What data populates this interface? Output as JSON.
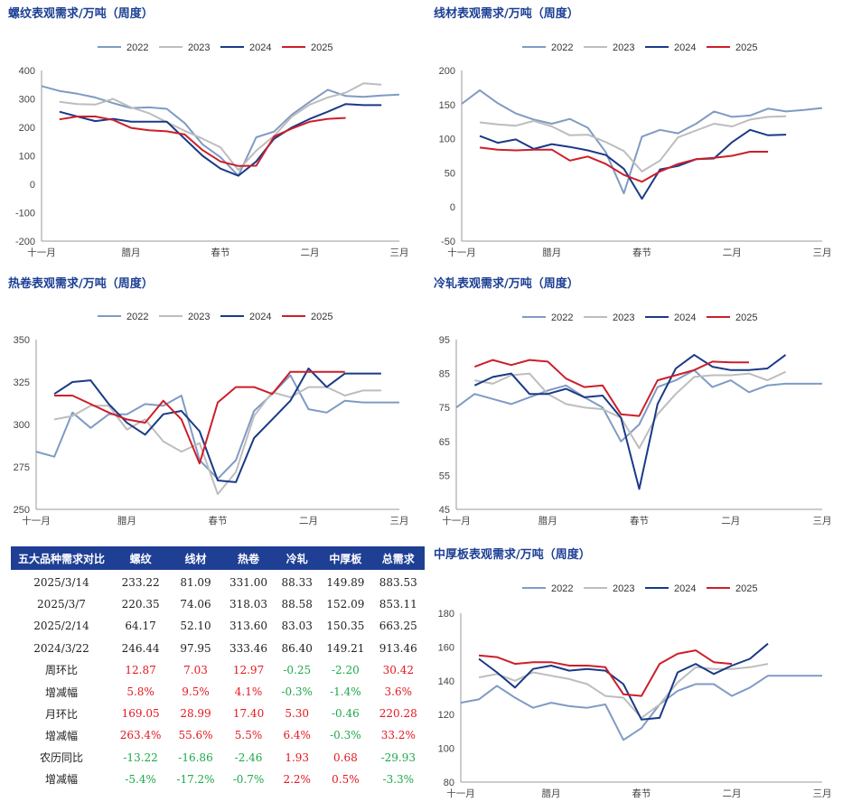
{
  "colors": {
    "2022": "#7f9bc4",
    "2023": "#bdbdbd",
    "2024": "#1a3a86",
    "2025": "#cc1f2a",
    "title": "#1c3f94",
    "header_bg": "#1f3f95",
    "positive": "#e3171f",
    "negative": "#1ea84a"
  },
  "chart_data": [
    {
      "id": "rebar",
      "type": "line",
      "title": "螺纹表观需求/万吨（周度）",
      "ylim": [
        -200,
        400
      ],
      "yticks": [
        -200,
        -100,
        0,
        100,
        200,
        300,
        400
      ],
      "xtick_labels": [
        "十一月",
        "腊月",
        "春节",
        "二月",
        "三月"
      ],
      "x_unit": "week index (0-20)",
      "series": [
        {
          "name": "2022",
          "x": [
            0,
            1,
            2,
            3,
            4,
            5,
            6,
            7,
            8,
            9,
            10,
            11,
            12,
            13,
            14,
            15,
            16,
            17,
            18,
            19,
            20
          ],
          "values": [
            345,
            328,
            318,
            305,
            285,
            268,
            270,
            265,
            215,
            140,
            95,
            30,
            165,
            185,
            245,
            290,
            332,
            310,
            307,
            312,
            315
          ]
        },
        {
          "name": "2023",
          "x": [
            1,
            2,
            3,
            4,
            5,
            6,
            7,
            8,
            9,
            10,
            11,
            12,
            13,
            14,
            15,
            16,
            17,
            18,
            19
          ],
          "values": [
            290,
            282,
            280,
            300,
            270,
            250,
            218,
            188,
            160,
            130,
            50,
            118,
            170,
            238,
            280,
            305,
            322,
            355,
            350
          ]
        },
        {
          "name": "2024",
          "x": [
            1,
            2,
            3,
            4,
            5,
            6,
            7,
            8,
            9,
            10,
            11,
            12,
            13,
            14,
            15,
            16,
            17,
            18,
            19
          ],
          "values": [
            255,
            238,
            222,
            230,
            220,
            220,
            220,
            160,
            100,
            55,
            30,
            80,
            160,
            200,
            230,
            255,
            282,
            278,
            278
          ]
        },
        {
          "name": "2025",
          "x": [
            1,
            2,
            3,
            4,
            5,
            6,
            7,
            8,
            9,
            10,
            11,
            12,
            13,
            14,
            15,
            16,
            17
          ],
          "values": [
            228,
            238,
            238,
            226,
            198,
            190,
            186,
            175,
            120,
            80,
            64,
            65,
            168,
            196,
            220,
            230,
            233
          ]
        }
      ]
    },
    {
      "id": "wire",
      "type": "line",
      "title": "线材表观需求/万吨（周度）",
      "ylim": [
        -50,
        200
      ],
      "yticks": [
        -50,
        0,
        50,
        100,
        150,
        200
      ],
      "xtick_labels": [
        "十一月",
        "腊月",
        "春节",
        "二月",
        "三月"
      ],
      "x_unit": "week index (0-20)",
      "series": [
        {
          "name": "2022",
          "x": [
            0,
            1,
            2,
            3,
            4,
            5,
            6,
            7,
            8,
            9,
            10,
            11,
            12,
            13,
            14,
            15,
            16,
            17,
            18,
            19,
            20
          ],
          "values": [
            151,
            171,
            152,
            137,
            128,
            122,
            129,
            116,
            80,
            20,
            103,
            113,
            108,
            122,
            140,
            132,
            134,
            144,
            140,
            142,
            145
          ]
        },
        {
          "name": "2023",
          "x": [
            1,
            2,
            3,
            4,
            5,
            6,
            7,
            8,
            9,
            10,
            11,
            12,
            13,
            14,
            15,
            16,
            17,
            18
          ],
          "values": [
            124,
            121,
            119,
            126,
            118,
            105,
            106,
            95,
            82,
            52,
            68,
            102,
            112,
            122,
            118,
            128,
            132,
            133
          ]
        },
        {
          "name": "2024",
          "x": [
            1,
            2,
            3,
            4,
            5,
            6,
            7,
            8,
            9,
            10,
            11,
            12,
            13,
            14,
            15,
            16,
            17,
            18
          ],
          "values": [
            104,
            94,
            99,
            85,
            92,
            88,
            83,
            76,
            56,
            12,
            55,
            60,
            70,
            71,
            95,
            113,
            105,
            106
          ]
        },
        {
          "name": "2025",
          "x": [
            1,
            2,
            3,
            4,
            5,
            6,
            7,
            8,
            9,
            10,
            11,
            12,
            13,
            14,
            15,
            16,
            17
          ],
          "values": [
            87,
            84,
            83,
            84,
            84,
            68,
            74,
            63,
            47,
            37,
            52,
            63,
            70,
            72,
            75,
            81,
            81
          ]
        }
      ]
    },
    {
      "id": "hrc",
      "type": "line",
      "title": "热卷表观需求/万吨（周度）",
      "ylim": [
        250,
        350
      ],
      "yticks": [
        250,
        275,
        300,
        325,
        350
      ],
      "xtick_labels": [
        "十一月",
        "腊月",
        "春节",
        "二月",
        "三月"
      ],
      "x_unit": "week index (0-20)",
      "series": [
        {
          "name": "2022",
          "x": [
            0,
            1,
            2,
            3,
            4,
            5,
            6,
            7,
            8,
            9,
            10,
            11,
            12,
            13,
            14,
            15,
            16,
            17,
            18,
            19,
            20
          ],
          "values": [
            284,
            281,
            307,
            298,
            306,
            306,
            312,
            311,
            317,
            279,
            268,
            279,
            308,
            318,
            329,
            309,
            307,
            314,
            313,
            313,
            313
          ]
        },
        {
          "name": "2023",
          "x": [
            1,
            2,
            3,
            4,
            5,
            6,
            7,
            8,
            9,
            10,
            11,
            12,
            13,
            14,
            15,
            16,
            17,
            18,
            19
          ],
          "values": [
            303,
            305,
            311,
            311,
            297,
            303,
            290,
            284,
            289,
            259,
            272,
            305,
            319,
            316,
            322,
            322,
            317,
            320,
            320
          ]
        },
        {
          "name": "2024",
          "x": [
            1,
            2,
            3,
            4,
            5,
            6,
            7,
            8,
            9,
            10,
            11,
            12,
            13,
            14,
            15,
            16,
            17,
            18,
            19
          ],
          "values": [
            318,
            325,
            326,
            312,
            301,
            294,
            306,
            308,
            296,
            267,
            266,
            292,
            303,
            314,
            333,
            322,
            330,
            330,
            330
          ]
        },
        {
          "name": "2025",
          "x": [
            1,
            2,
            3,
            4,
            5,
            6,
            7,
            8,
            9,
            10,
            11,
            12,
            13,
            14,
            15,
            16,
            17
          ],
          "values": [
            317,
            317,
            312,
            307,
            303,
            301,
            314,
            303,
            277,
            313,
            322,
            322,
            318,
            331,
            331,
            331,
            331
          ]
        }
      ]
    },
    {
      "id": "crc",
      "type": "line",
      "title": "冷轧表观需求/万吨（周度）",
      "ylim": [
        45,
        95
      ],
      "yticks": [
        45,
        55,
        65,
        75,
        85,
        95
      ],
      "xtick_labels": [
        "十一月",
        "腊月",
        "春节",
        "二月",
        "三月"
      ],
      "x_unit": "week index (0-20)",
      "series": [
        {
          "name": "2022",
          "x": [
            0,
            1,
            2,
            3,
            4,
            5,
            6,
            7,
            8,
            9,
            10,
            11,
            12,
            13,
            14,
            15,
            16,
            17,
            18,
            19,
            20
          ],
          "values": [
            75,
            79,
            77.5,
            76,
            78,
            80,
            81.5,
            78,
            75,
            65,
            70,
            81,
            83,
            86,
            81,
            83,
            79.5,
            81.5,
            82,
            82,
            82
          ]
        },
        {
          "name": "2023",
          "x": [
            1,
            2,
            3,
            4,
            5,
            6,
            7,
            8,
            9,
            10,
            11,
            12,
            13,
            14,
            15,
            16,
            17,
            18
          ],
          "values": [
            83,
            82,
            84.5,
            85,
            79,
            76,
            75,
            74.5,
            72,
            63,
            73,
            79,
            84,
            84.5,
            84.5,
            85,
            83,
            85.5
          ]
        },
        {
          "name": "2024",
          "x": [
            1,
            2,
            3,
            4,
            5,
            6,
            7,
            8,
            9,
            10,
            11,
            12,
            13,
            14,
            15,
            16,
            17,
            18
          ],
          "values": [
            81.5,
            84,
            85,
            79,
            79,
            80.5,
            78,
            78.5,
            72,
            51,
            76,
            86.5,
            90.5,
            87,
            86,
            86,
            86.5,
            90.5
          ]
        },
        {
          "name": "2025",
          "x": [
            1,
            2,
            3,
            4,
            5,
            6,
            7,
            8,
            9,
            10,
            11,
            12,
            13,
            14,
            15,
            16
          ],
          "values": [
            87,
            89,
            87.5,
            89,
            88.5,
            83.5,
            81,
            81.5,
            73,
            72.5,
            83,
            84.5,
            86,
            88.5,
            88.3,
            88.3
          ]
        }
      ]
    },
    {
      "id": "plate",
      "type": "line",
      "title": "中厚板表观需求/万吨（周度）",
      "ylim": [
        80,
        180
      ],
      "yticks": [
        80,
        100,
        120,
        140,
        160,
        180
      ],
      "xtick_labels": [
        "十一月",
        "腊月",
        "春节",
        "二月",
        "三月"
      ],
      "x_unit": "week index (0-20)",
      "series": [
        {
          "name": "2022",
          "x": [
            0,
            1,
            2,
            3,
            4,
            5,
            6,
            7,
            8,
            9,
            10,
            11,
            12,
            13,
            14,
            15,
            16,
            17,
            18,
            19,
            20
          ],
          "values": [
            127,
            129,
            137,
            130,
            124,
            127,
            125,
            124,
            126,
            105,
            112,
            126,
            134,
            138,
            138,
            131,
            136,
            143,
            143,
            143,
            143
          ]
        },
        {
          "name": "2023",
          "x": [
            1,
            2,
            3,
            4,
            5,
            6,
            7,
            8,
            9,
            10,
            11,
            12,
            13,
            14,
            15,
            16,
            17
          ],
          "values": [
            142,
            144,
            140,
            145,
            143,
            141,
            138,
            131,
            130,
            118,
            126,
            139,
            148,
            147,
            147,
            148,
            150
          ]
        },
        {
          "name": "2024",
          "x": [
            1,
            2,
            3,
            4,
            5,
            6,
            7,
            8,
            9,
            10,
            11,
            12,
            13,
            14,
            15,
            16,
            17
          ],
          "values": [
            153,
            145,
            136,
            147,
            149,
            146,
            147,
            146,
            138,
            117,
            118,
            145,
            150,
            144,
            149,
            153,
            162
          ]
        },
        {
          "name": "2025",
          "x": [
            1,
            2,
            3,
            4,
            5,
            6,
            7,
            8,
            9,
            10,
            11,
            12,
            13,
            14,
            15
          ],
          "values": [
            155,
            154,
            150,
            151,
            151,
            149,
            149,
            148,
            132,
            131,
            150,
            156,
            158,
            151,
            150
          ]
        }
      ]
    }
  ],
  "table": {
    "headers": [
      "五大品种需求对比",
      "螺纹",
      "线材",
      "热卷",
      "冷轧",
      "中厚板",
      "总需求"
    ],
    "rows": [
      {
        "label": "2025/3/14",
        "kind": "plain",
        "cells": [
          "233.22",
          "81.09",
          "331.00",
          "88.33",
          "149.89",
          "883.53"
        ]
      },
      {
        "label": "2025/3/7",
        "kind": "plain",
        "cells": [
          "220.35",
          "74.06",
          "318.03",
          "88.58",
          "152.09",
          "853.11"
        ]
      },
      {
        "label": "2025/2/14",
        "kind": "plain",
        "cells": [
          "64.17",
          "52.10",
          "313.60",
          "83.03",
          "150.35",
          "663.25"
        ]
      },
      {
        "label": "2024/3/22",
        "kind": "plain",
        "cells": [
          "246.44",
          "97.95",
          "333.46",
          "86.40",
          "149.21",
          "913.46"
        ]
      },
      {
        "label": "周环比",
        "kind": "signed",
        "cells": [
          "12.87",
          "7.03",
          "12.97",
          "-0.25",
          "-2.20",
          "30.42"
        ]
      },
      {
        "label": "增减幅",
        "kind": "signed",
        "cells": [
          "5.8%",
          "9.5%",
          "4.1%",
          "-0.3%",
          "-1.4%",
          "3.6%"
        ]
      },
      {
        "label": "月环比",
        "kind": "signed",
        "cells": [
          "169.05",
          "28.99",
          "17.40",
          "5.30",
          "-0.46",
          "220.28"
        ]
      },
      {
        "label": "增减幅",
        "kind": "signed",
        "cells": [
          "263.4%",
          "55.6%",
          "5.5%",
          "6.4%",
          "-0.3%",
          "33.2%"
        ]
      },
      {
        "label": "农历同比",
        "kind": "signed",
        "cells": [
          "-13.22",
          "-16.86",
          "-2.46",
          "1.93",
          "0.68",
          "-29.93"
        ]
      },
      {
        "label": "增减幅",
        "kind": "signed",
        "cells": [
          "-5.4%",
          "-17.2%",
          "-0.7%",
          "2.2%",
          "0.5%",
          "-3.3%"
        ]
      }
    ]
  }
}
